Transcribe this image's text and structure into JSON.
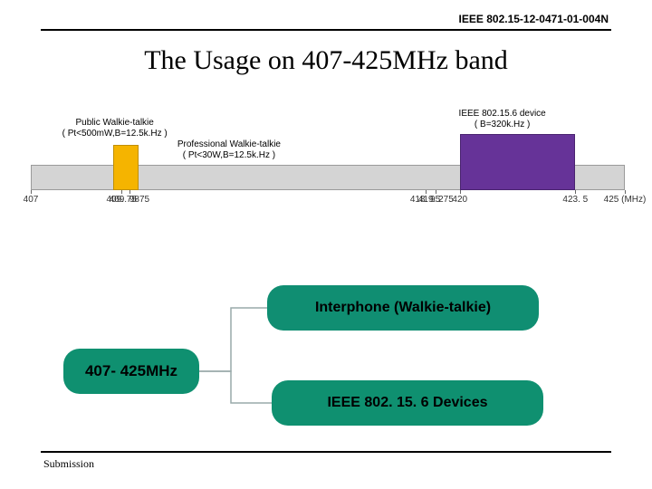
{
  "doc_id": "IEEE 802.15-12-0471-01-004N",
  "title": "The Usage on 407-425MHz band",
  "chart": {
    "freq_min": 407,
    "freq_max": 425,
    "unit_label": "(MHz)",
    "grey_bar_color": "#d4d4d4",
    "yellow_color": "#f5b400",
    "purple_color": "#663398",
    "bg_color": "#ffffff",
    "font_size_labels": 10,
    "yellow_block": {
      "start": 409.75,
      "end": 409.9875
    },
    "purple_block": {
      "start": 420,
      "end": 423.5
    },
    "labels": {
      "public": {
        "line1": "Public Walkie-talkie",
        "line2": "( Pt<500mW,B=12.5k.Hz )",
        "x": 409.87
      },
      "prof": {
        "line1": "Professional Walkie-talkie",
        "line2": "( Pt<30W,B=12.5k.Hz )",
        "x": 413.5
      },
      "ieee": {
        "line1": "IEEE 802.15.6 device",
        "line2": "( B=320k.Hz )",
        "x": 421.75
      }
    },
    "ticks": [
      407,
      409.75,
      409.9875,
      418.95,
      419.275,
      420,
      423.5,
      425
    ]
  },
  "tree": {
    "root_label": "407- 425MHz",
    "child_a": "Interphone (Walkie-talkie)",
    "child_b": "IEEE 802. 15. 6 Devices",
    "node_color": "#0f9070",
    "connector_color": "#9aa"
  },
  "footer": "Submission"
}
